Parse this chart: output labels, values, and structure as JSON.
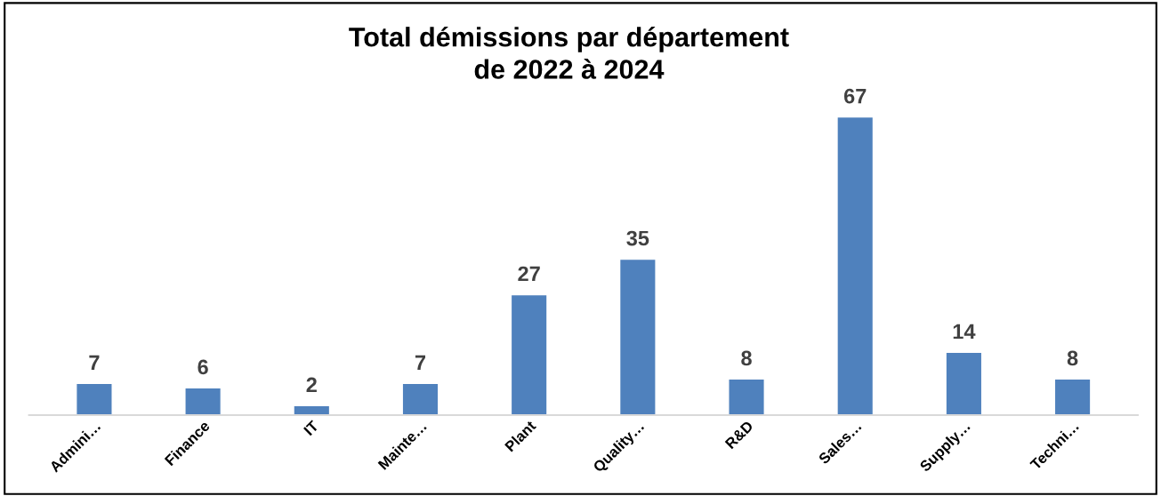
{
  "chart_data": {
    "type": "bar",
    "title": "Total démissions par département\nde 2022 à 2024",
    "categories": [
      "Admini…",
      "Finance",
      "IT",
      "Mainte…",
      "Plant",
      "Quality…",
      "R&D",
      "Sales…",
      "Supply…",
      "Techni…"
    ],
    "values": [
      7,
      6,
      2,
      7,
      27,
      35,
      8,
      67,
      14,
      8
    ],
    "color": "#4f81bd",
    "data_labels": true,
    "grid": false,
    "tick_labels": "x"
  }
}
